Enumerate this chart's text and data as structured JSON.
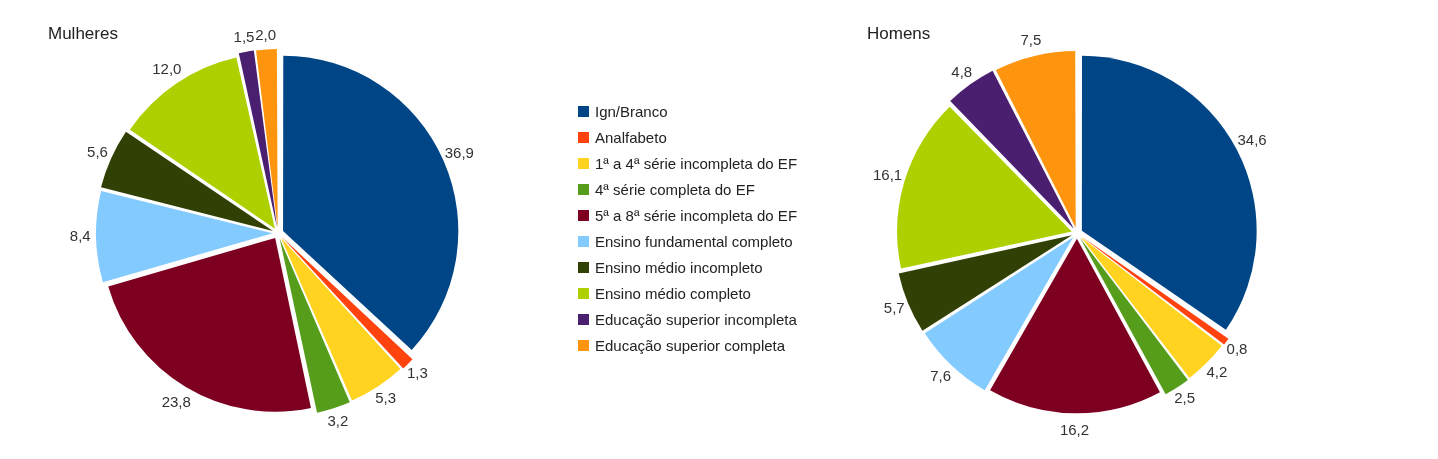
{
  "chart_data": [
    {
      "type": "pie",
      "title": "Mulheres",
      "legend": "right",
      "categories": [
        "Ign/Branco",
        "Analfabeto",
        "1ª a 4ª série incompleta do EF",
        "4ª série completa do EF",
        "5ª a 8ª série incompleta do EF",
        "Ensino fundamental completo",
        "Ensino médio incompleto",
        "Ensino médio completo",
        "Educação superior incompleta",
        "Educação superior completa"
      ],
      "values": [
        36.9,
        1.3,
        5.3,
        3.2,
        23.8,
        8.4,
        5.6,
        12.0,
        1.5,
        2.0
      ],
      "value_labels": [
        "36,9",
        "1,3",
        "5,3",
        "3,2",
        "23,8",
        "8,4",
        "5,6",
        "12,0",
        "1,5",
        "2,0"
      ],
      "colors": [
        "#004586",
        "#ff420e",
        "#ffd320",
        "#579d1c",
        "#7e0021",
        "#83caff",
        "#314004",
        "#aecf00",
        "#4b1f6f",
        "#ff950e"
      ]
    },
    {
      "type": "pie",
      "title": "Homens",
      "categories": [
        null,
        null,
        null,
        null,
        null,
        null,
        null,
        null,
        null,
        null
      ],
      "values": [
        34.6,
        0.8,
        4.2,
        2.5,
        16.2,
        7.6,
        5.7,
        16.1,
        4.8,
        7.5
      ],
      "value_labels": [
        "34,6",
        "0,8",
        "4,2",
        "2,5",
        "16,2",
        "7,6",
        "5,7",
        "16,1",
        "4,8",
        "7,5"
      ],
      "colors": [
        "#004586",
        "#ff420e",
        "#ffd320",
        "#579d1c",
        "#7e0021",
        "#83caff",
        "#314004",
        "#aecf00",
        "#4b1f6f",
        "#ff950e"
      ]
    }
  ]
}
